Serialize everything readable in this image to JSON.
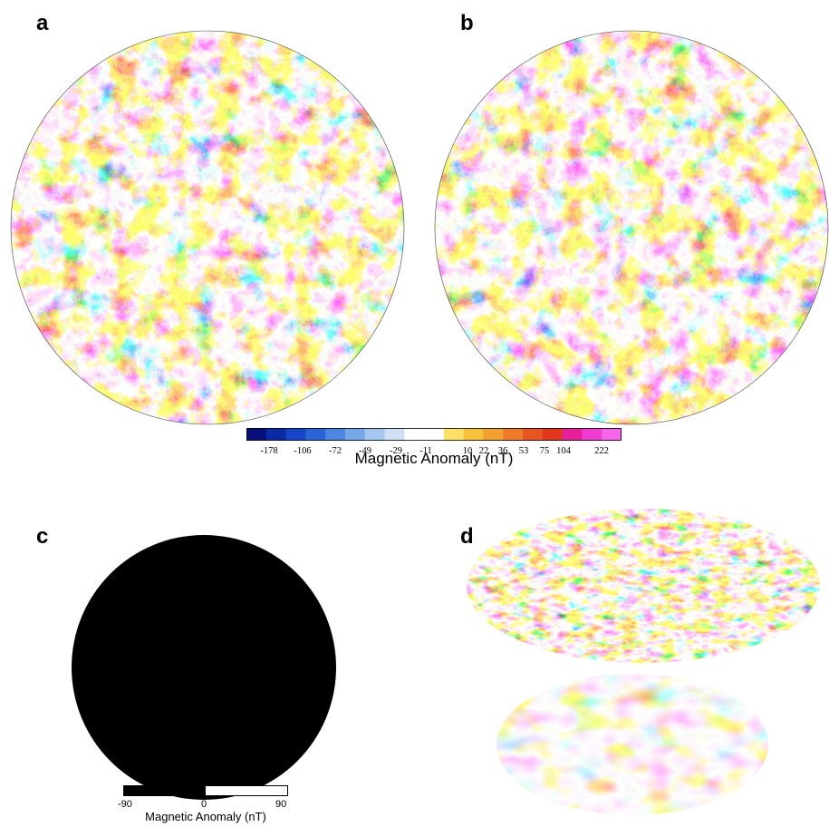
{
  "panels": {
    "a": {
      "label": "a"
    },
    "b": {
      "label": "b"
    },
    "c": {
      "label": "c"
    },
    "d": {
      "label": "d"
    }
  },
  "color_scale": {
    "title": "Magnetic Anomaly (nT)",
    "ticks": [
      "-178",
      "-106",
      "-72",
      "-49",
      "-29",
      "-11",
      "10",
      "22",
      "36",
      "53",
      "75",
      "104",
      "222"
    ],
    "colors": [
      "#08107a",
      "#0d2aa6",
      "#1745c8",
      "#2a64d8",
      "#4d86e0",
      "#77a7e8",
      "#a4c6ef",
      "#cfe0f5",
      "#ffffff",
      "#ffffff",
      "#ffe066",
      "#f7c23a",
      "#f2a030",
      "#ee7a2a",
      "#e85522",
      "#e2351e",
      "#e8209a",
      "#f03cd0",
      "#f566e8"
    ]
  },
  "bw_scale": {
    "title": "Magnetic Anomaly (nT)",
    "min": "-90",
    "mid": "0",
    "max": "90"
  },
  "palette": {
    "deep_blue": "#0a1a8c",
    "blue": "#2b5fd6",
    "light_blue": "#9cc4ee",
    "white": "#ffffff",
    "orange": "#f0a030",
    "red": "#e24a1e",
    "magenta": "#ee2ec4"
  }
}
